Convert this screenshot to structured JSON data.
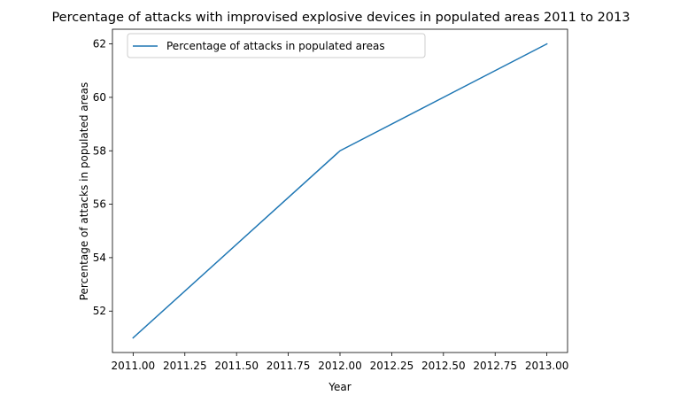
{
  "chart_data": {
    "type": "line",
    "title": "Percentage of attacks with improvised explosive devices in populated areas 2011 to 2013",
    "xlabel": "Year",
    "ylabel": "Percentage of attacks in populated areas",
    "x": [
      2011,
      2012,
      2013
    ],
    "series": [
      {
        "name": "Percentage of attacks in populated areas",
        "values": [
          51,
          58,
          62
        ],
        "color": "#1f77b4"
      }
    ],
    "xlim": [
      2010.9,
      2013.1
    ],
    "ylim": [
      50.45,
      62.55
    ],
    "xticks": [
      2011.0,
      2011.25,
      2011.5,
      2011.75,
      2012.0,
      2012.25,
      2012.5,
      2012.75,
      2013.0
    ],
    "xtick_labels": [
      "2011.00",
      "2011.25",
      "2011.50",
      "2011.75",
      "2012.00",
      "2012.25",
      "2012.50",
      "2012.75",
      "2013.00"
    ],
    "yticks": [
      52,
      54,
      56,
      58,
      60,
      62
    ],
    "ytick_labels": [
      "52",
      "54",
      "56",
      "58",
      "60",
      "62"
    ],
    "grid": false,
    "legend": "upper-left"
  }
}
